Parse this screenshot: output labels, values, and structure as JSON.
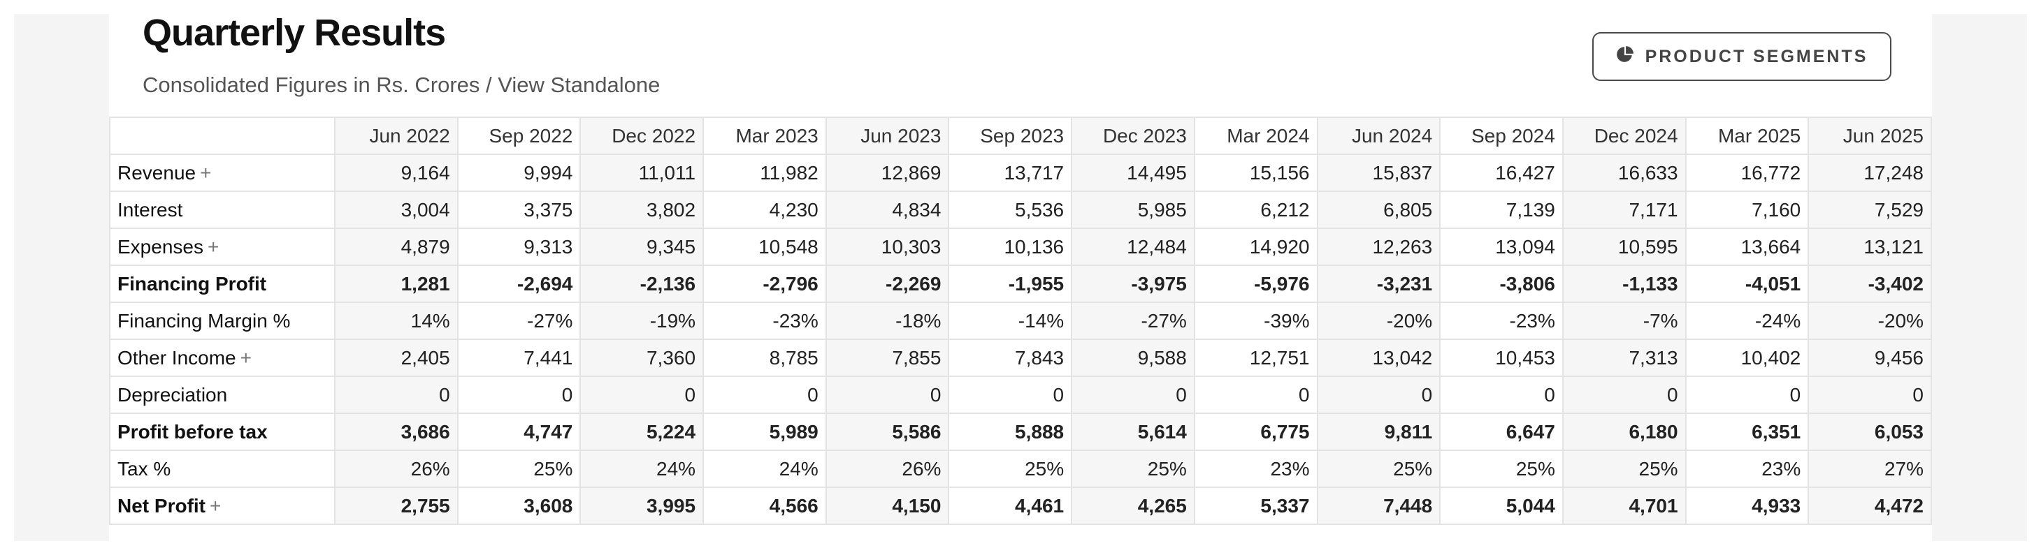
{
  "header": {
    "title": "Quarterly Results",
    "subtitle": "Consolidated Figures in Rs. Crores / View Standalone",
    "segments_button": "PRODUCT SEGMENTS"
  },
  "table": {
    "columns": [
      "Jun 2022",
      "Sep 2022",
      "Dec 2022",
      "Mar 2023",
      "Jun 2023",
      "Sep 2023",
      "Dec 2023",
      "Mar 2024",
      "Jun 2024",
      "Sep 2024",
      "Dec 2024",
      "Mar 2025",
      "Jun 2025"
    ],
    "rows": [
      {
        "label": "Revenue",
        "expand": "+",
        "bold": false,
        "values": [
          "9,164",
          "9,994",
          "11,011",
          "11,982",
          "12,869",
          "13,717",
          "14,495",
          "15,156",
          "15,837",
          "16,427",
          "16,633",
          "16,772",
          "17,248"
        ]
      },
      {
        "label": "Interest",
        "expand": "",
        "bold": false,
        "values": [
          "3,004",
          "3,375",
          "3,802",
          "4,230",
          "4,834",
          "5,536",
          "5,985",
          "6,212",
          "6,805",
          "7,139",
          "7,171",
          "7,160",
          "7,529"
        ]
      },
      {
        "label": "Expenses",
        "expand": "+",
        "bold": false,
        "values": [
          "4,879",
          "9,313",
          "9,345",
          "10,548",
          "10,303",
          "10,136",
          "12,484",
          "14,920",
          "12,263",
          "13,094",
          "10,595",
          "13,664",
          "13,121"
        ]
      },
      {
        "label": "Financing Profit",
        "expand": "",
        "bold": true,
        "values": [
          "1,281",
          "-2,694",
          "-2,136",
          "-2,796",
          "-2,269",
          "-1,955",
          "-3,975",
          "-5,976",
          "-3,231",
          "-3,806",
          "-1,133",
          "-4,051",
          "-3,402"
        ]
      },
      {
        "label": "Financing Margin %",
        "expand": "",
        "bold": false,
        "values": [
          "14%",
          "-27%",
          "-19%",
          "-23%",
          "-18%",
          "-14%",
          "-27%",
          "-39%",
          "-20%",
          "-23%",
          "-7%",
          "-24%",
          "-20%"
        ]
      },
      {
        "label": "Other Income",
        "expand": "+",
        "bold": false,
        "values": [
          "2,405",
          "7,441",
          "7,360",
          "8,785",
          "7,855",
          "7,843",
          "9,588",
          "12,751",
          "13,042",
          "10,453",
          "7,313",
          "10,402",
          "9,456"
        ]
      },
      {
        "label": "Depreciation",
        "expand": "",
        "bold": false,
        "values": [
          "0",
          "0",
          "0",
          "0",
          "0",
          "0",
          "0",
          "0",
          "0",
          "0",
          "0",
          "0",
          "0"
        ]
      },
      {
        "label": "Profit before tax",
        "expand": "",
        "bold": true,
        "values": [
          "3,686",
          "4,747",
          "5,224",
          "5,989",
          "5,586",
          "5,888",
          "5,614",
          "6,775",
          "9,811",
          "6,647",
          "6,180",
          "6,351",
          "6,053"
        ]
      },
      {
        "label": "Tax %",
        "expand": "",
        "bold": false,
        "values": [
          "26%",
          "25%",
          "24%",
          "24%",
          "26%",
          "25%",
          "25%",
          "23%",
          "25%",
          "25%",
          "25%",
          "23%",
          "27%"
        ]
      },
      {
        "label": "Net Profit",
        "expand": "+",
        "bold": true,
        "values": [
          "2,755",
          "3,608",
          "3,995",
          "4,566",
          "4,150",
          "4,461",
          "4,265",
          "5,337",
          "7,448",
          "5,044",
          "4,701",
          "4,933",
          "4,472"
        ]
      }
    ]
  }
}
